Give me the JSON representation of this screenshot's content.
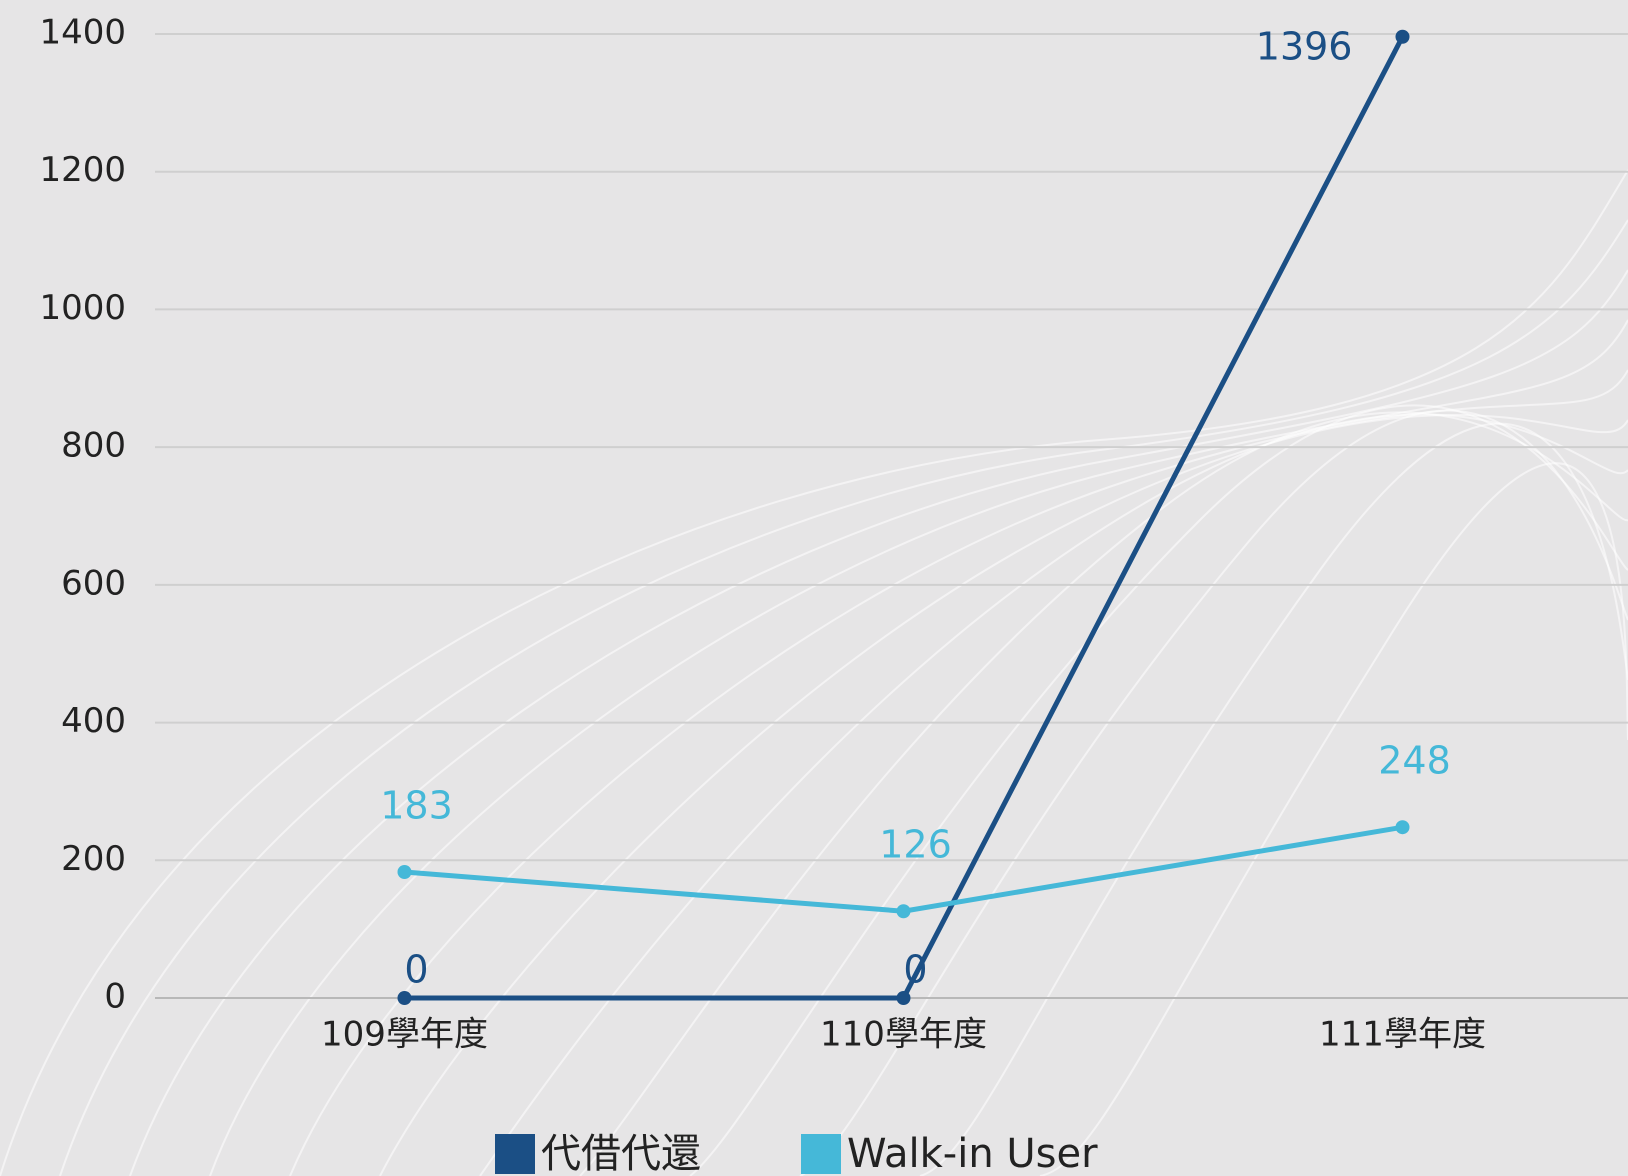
{
  "chart_data": {
    "type": "line",
    "categories": [
      "109學年度",
      "110學年度",
      "111學年度"
    ],
    "series": [
      {
        "name": "代借代還",
        "color": "#1b4f85",
        "values": [
          0,
          0,
          1396
        ]
      },
      {
        "name": "Walk-in User",
        "color": "#45b8d8",
        "values": [
          183,
          126,
          248
        ]
      }
    ],
    "ylim": [
      0,
      1400
    ],
    "yticks": [
      0,
      200,
      400,
      600,
      800,
      1000,
      1200,
      1400
    ],
    "grid": true
  }
}
